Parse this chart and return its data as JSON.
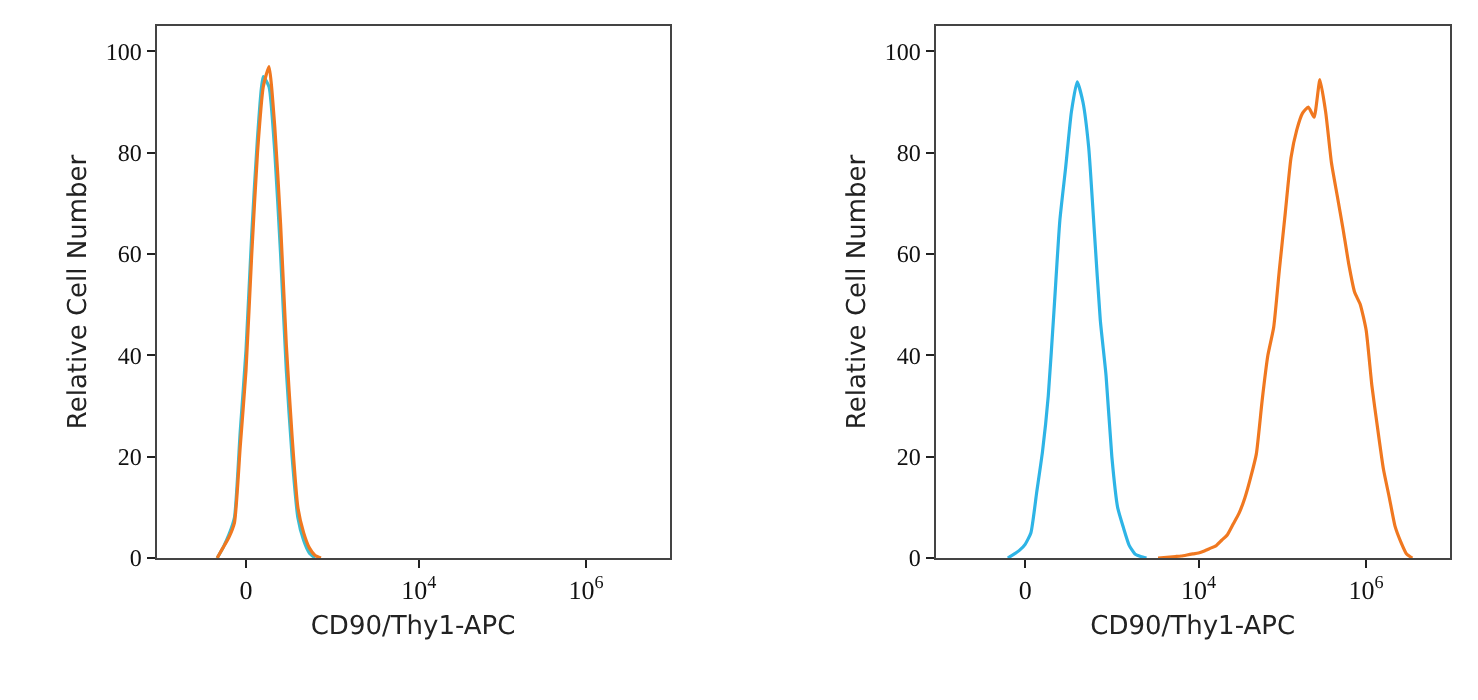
{
  "chart_data": [
    {
      "type": "line",
      "xlabel": "CD90/Thy1-APC",
      "ylabel": "Relative Cell Number",
      "ylim": [
        0,
        105
      ],
      "yticks": [
        0,
        20,
        40,
        60,
        80,
        100
      ],
      "marker": "none",
      "line_style": "solid",
      "categories": [
        null,
        null,
        null,
        null,
        null,
        null,
        null,
        null,
        null,
        null,
        null,
        null,
        null,
        null,
        null,
        "0",
        null,
        null,
        null,
        null,
        null,
        null,
        null,
        null,
        null,
        null,
        null,
        null,
        null,
        null,
        null,
        null,
        null,
        null,
        null,
        null,
        null,
        null,
        null,
        null,
        null,
        null,
        null,
        null,
        null,
        "10$^{4}$",
        null,
        null,
        null,
        null,
        null,
        null,
        null,
        null,
        null,
        null,
        null,
        null,
        null,
        null,
        null,
        null,
        null,
        null,
        null,
        null,
        null,
        null,
        null,
        null,
        null,
        null,
        null,
        null,
        "10$^{6}$",
        null,
        null,
        null,
        null,
        null,
        null,
        null,
        null,
        null,
        null,
        null,
        null,
        null,
        null
      ],
      "series": [
        {
          "color": "#3cbcd0",
          "values": [
            null,
            null,
            null,
            null,
            null,
            null,
            null,
            null,
            null,
            null,
            0,
            2,
            4.5,
            8,
            25,
            41,
            64,
            83,
            95,
            93,
            80,
            60,
            37,
            20,
            8,
            3.5,
            1,
            0,
            null,
            null,
            null,
            null,
            null,
            null,
            null,
            null,
            null,
            null,
            null,
            null,
            null,
            null,
            null,
            null,
            null,
            null,
            null,
            null,
            null,
            null,
            null,
            null,
            null,
            null,
            null,
            null,
            null,
            null,
            null,
            null,
            null,
            null,
            null,
            null,
            null,
            null,
            null,
            null,
            null,
            null,
            null,
            null,
            null,
            null,
            null,
            null,
            null,
            null,
            null,
            null,
            null,
            null,
            null,
            null,
            null,
            null,
            null,
            null,
            null
          ]
        },
        {
          "color": "#f07820",
          "values": [
            null,
            null,
            null,
            null,
            null,
            null,
            null,
            null,
            null,
            null,
            0,
            2,
            4,
            7,
            22,
            37,
            60,
            80,
            93,
            97,
            85,
            66,
            42,
            24,
            10,
            5,
            2,
            0.5,
            0,
            null,
            null,
            null,
            null,
            null,
            null,
            null,
            null,
            null,
            null,
            null,
            null,
            null,
            null,
            null,
            null,
            null,
            null,
            null,
            null,
            null,
            null,
            null,
            null,
            null,
            null,
            null,
            null,
            null,
            null,
            null,
            null,
            null,
            null,
            null,
            null,
            null,
            null,
            null,
            null,
            null,
            null,
            null,
            null,
            null,
            null,
            null,
            null,
            null,
            null,
            null,
            null,
            null,
            null,
            null,
            null,
            null,
            null,
            null,
            null
          ]
        }
      ]
    },
    {
      "type": "line",
      "xlabel": "CD90/Thy1-APC",
      "ylabel": "Relative Cell Number",
      "ylim": [
        0,
        105
      ],
      "yticks": [
        0,
        20,
        40,
        60,
        80,
        100
      ],
      "marker": "none",
      "line_style": "solid",
      "categories": [
        null,
        null,
        null,
        null,
        null,
        null,
        null,
        null,
        null,
        null,
        null,
        null,
        null,
        null,
        null,
        "0",
        null,
        null,
        null,
        null,
        null,
        null,
        null,
        null,
        null,
        null,
        null,
        null,
        null,
        null,
        null,
        null,
        null,
        null,
        null,
        null,
        null,
        null,
        null,
        null,
        null,
        null,
        null,
        null,
        null,
        "10$^{4}$",
        null,
        null,
        null,
        null,
        null,
        null,
        null,
        null,
        null,
        null,
        null,
        null,
        null,
        null,
        null,
        null,
        null,
        null,
        null,
        null,
        null,
        null,
        null,
        null,
        null,
        null,
        null,
        null,
        "10$^{6}$",
        null,
        null,
        null,
        null,
        null,
        null,
        null,
        null,
        null,
        null,
        null,
        null,
        null,
        null
      ],
      "series": [
        {
          "color": "#f07820",
          "values": [
            null,
            null,
            null,
            null,
            null,
            null,
            null,
            null,
            null,
            null,
            null,
            null,
            null,
            null,
            null,
            null,
            null,
            null,
            null,
            null,
            null,
            null,
            null,
            null,
            null,
            null,
            null,
            null,
            null,
            null,
            null,
            null,
            null,
            null,
            null,
            null,
            null,
            null,
            0,
            0.1,
            0.2,
            0.3,
            0.4,
            0.6,
            0.8,
            1,
            1.4,
            1.9,
            2.4,
            3.5,
            4.6,
            6.7,
            8.8,
            11.8,
            15.8,
            20.5,
            31,
            40,
            45.5,
            57,
            68,
            79,
            84.5,
            87.8,
            89,
            87,
            94.4,
            88,
            78,
            71.5,
            65,
            58,
            52.5,
            50,
            45,
            34,
            25.5,
            17.5,
            12,
            6.3,
            3.2,
            0.8,
            0,
            null,
            null,
            null,
            null,
            null,
            null
          ]
        },
        {
          "color": "#2eb4e6",
          "values": [
            null,
            null,
            null,
            null,
            null,
            null,
            null,
            null,
            null,
            null,
            null,
            null,
            0,
            0.7,
            1.5,
            2.7,
            5,
            13,
            21,
            32,
            49,
            66.6,
            77,
            88,
            94,
            90,
            81,
            64,
            47,
            36,
            20,
            10,
            6,
            2.5,
            0.8,
            0.3,
            0,
            null,
            null,
            null,
            null,
            null,
            null,
            null,
            null,
            null,
            null,
            null,
            null,
            null,
            null,
            null,
            null,
            null,
            null,
            null,
            null,
            null,
            null,
            null,
            null,
            null,
            null,
            null,
            null,
            null,
            null,
            null,
            null,
            null,
            null,
            null,
            null,
            null,
            null,
            null,
            null,
            null,
            null,
            null,
            null,
            null,
            null,
            null,
            null,
            null,
            null,
            null,
            null
          ]
        }
      ]
    }
  ]
}
